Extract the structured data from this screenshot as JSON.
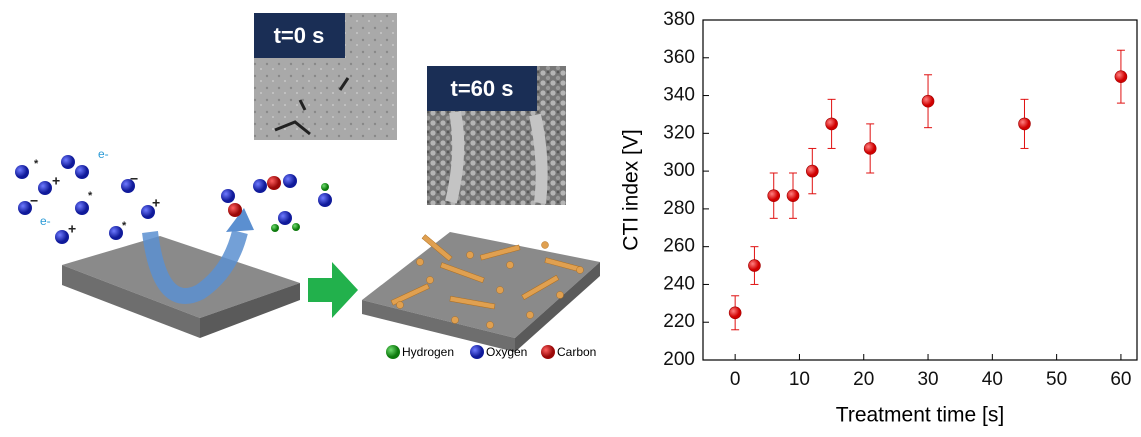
{
  "schematic": {
    "image_labels": [
      "t=0 s",
      "t=60 s"
    ],
    "electron": "e-",
    "legend": [
      "Hydrogen",
      "Oxygen",
      "Carbon"
    ]
  },
  "chart_data": {
    "type": "scatter",
    "x_label": "Treatment time [s]",
    "y_label": "CTI index [V]",
    "series": [
      {
        "color": "#e01010",
        "x": [
          0,
          3,
          6,
          9,
          12,
          15,
          21,
          30,
          45,
          60
        ],
        "values": [
          225,
          250,
          287,
          287,
          300,
          325,
          312,
          337,
          325,
          350
        ],
        "errors": [
          9,
          10,
          12,
          12,
          12,
          13,
          13,
          14,
          13,
          14
        ]
      }
    ],
    "xlim": [
      -5,
      62.5
    ],
    "ylim": [
      200,
      380
    ],
    "xticks": [
      0,
      10,
      20,
      30,
      40,
      50,
      60
    ],
    "yticks": [
      200,
      220,
      240,
      260,
      280,
      300,
      320,
      340,
      360,
      380
    ]
  }
}
